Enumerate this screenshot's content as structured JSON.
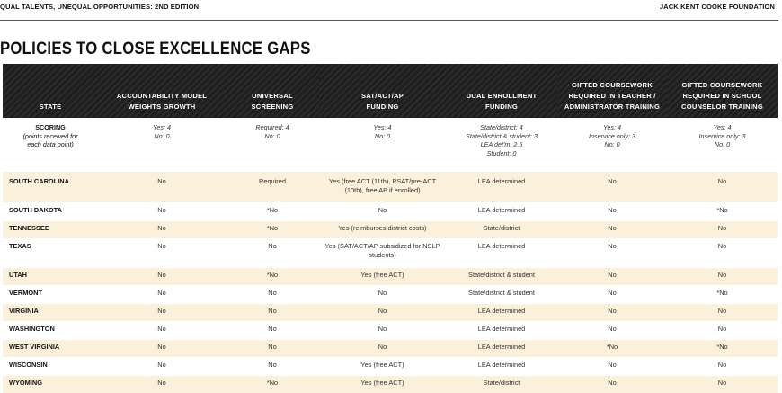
{
  "header": {
    "left": "QUAL TALENTS, UNEQUAL OPPORTUNITIES: 2ND EDITION",
    "right": "JACK KENT COOKE FOUNDATION"
  },
  "title": "POLICIES TO CLOSE EXCELLENCE GAPS",
  "columns": [
    [
      "STATE"
    ],
    [
      "ACCOUNTABILITY MODEL",
      "WEIGHTS GROWTH"
    ],
    [
      "UNIVERSAL",
      "SCREENING"
    ],
    [
      "SAT/ACT/AP",
      "FUNDING"
    ],
    [
      "DUAL ENROLLMENT",
      "FUNDING"
    ],
    [
      "GIFTED COURSEWORK",
      "REQUIRED IN TEACHER /",
      "ADMINISTRATOR TRAINING"
    ],
    [
      "GIFTED COURSEWORK",
      "REQUIRED IN SCHOOL",
      "COUNSELOR TRAINING"
    ]
  ],
  "scoring": {
    "label": "SCORING",
    "sub": [
      "(points received for",
      "each data point)"
    ],
    "cells": [
      [
        "Yes: 4",
        "No: 0"
      ],
      [
        "Required: 4",
        "No: 0"
      ],
      [
        "Yes: 4",
        "No: 0"
      ],
      [
        "State/district: 4",
        "State/district & student: 3",
        "LEA det'm: 2.5",
        "Student: 0"
      ],
      [
        "Yes: 4",
        "Inservice only: 3",
        "No: 0"
      ],
      [
        "Yes: 4",
        "Inservice only: 3",
        "No: 0"
      ]
    ]
  },
  "rows": [
    {
      "state": "SOUTH CAROLINA",
      "cls": "r-sc",
      "cells": [
        [
          "No"
        ],
        [
          "Required"
        ],
        [
          "Yes (free ACT (11th), PSAT/pre-ACT",
          "(10th), free AP if enrolled)"
        ],
        [
          "LEA determined"
        ],
        [
          "No"
        ],
        [
          "No"
        ]
      ]
    },
    {
      "state": "SOUTH DAKOTA",
      "cls": "r-std",
      "cells": [
        [
          "No"
        ],
        [
          "*No"
        ],
        [
          "No"
        ],
        [
          "LEA determined"
        ],
        [
          "No"
        ],
        [
          "*No"
        ]
      ]
    },
    {
      "state": "TENNESSEE",
      "cls": "r-std",
      "cells": [
        [
          "No"
        ],
        [
          "*No"
        ],
        [
          "Yes (reimburses district costs)"
        ],
        [
          "State/district"
        ],
        [
          "No"
        ],
        [
          "No"
        ]
      ]
    },
    {
      "state": "TEXAS",
      "cls": "r-tx",
      "cells": [
        [
          "No"
        ],
        [
          "No"
        ],
        [
          "Yes (SAT/ACT/AP subsidized for NSLP",
          "students)"
        ],
        [
          "LEA determined"
        ],
        [
          "No"
        ],
        [
          "No"
        ]
      ]
    },
    {
      "state": "UTAH",
      "cls": "r-std",
      "cells": [
        [
          "No"
        ],
        [
          "*No"
        ],
        [
          "Yes (free ACT)"
        ],
        [
          "State/district & student"
        ],
        [
          "No"
        ],
        [
          "No"
        ]
      ]
    },
    {
      "state": "VERMONT",
      "cls": "r-std",
      "cells": [
        [
          "No"
        ],
        [
          "No"
        ],
        [
          "No"
        ],
        [
          "State/district & student"
        ],
        [
          "No"
        ],
        [
          "*No"
        ]
      ]
    },
    {
      "state": "VIRGINIA",
      "cls": "r-std",
      "cells": [
        [
          "No"
        ],
        [
          "No"
        ],
        [
          "No"
        ],
        [
          "LEA determined"
        ],
        [
          "No"
        ],
        [
          "No"
        ]
      ]
    },
    {
      "state": "WASHINGTON",
      "cls": "r-std",
      "cells": [
        [
          "No"
        ],
        [
          "No"
        ],
        [
          "No"
        ],
        [
          "LEA determined"
        ],
        [
          "No"
        ],
        [
          "No"
        ]
      ]
    },
    {
      "state": "WEST VIRGINIA",
      "cls": "r-std",
      "cells": [
        [
          "No"
        ],
        [
          "No"
        ],
        [
          "No"
        ],
        [
          "LEA determined"
        ],
        [
          "*No"
        ],
        [
          "*No"
        ]
      ]
    },
    {
      "state": "WISCONSIN",
      "cls": "r-std",
      "cells": [
        [
          "No"
        ],
        [
          "No"
        ],
        [
          "Yes (free ACT)"
        ],
        [
          "LEA determined"
        ],
        [
          "No"
        ],
        [
          "No"
        ]
      ]
    },
    {
      "state": "WYOMING",
      "cls": "r-std",
      "cells": [
        [
          "No"
        ],
        [
          "*No"
        ],
        [
          "Yes (free ACT)"
        ],
        [
          "State/district"
        ],
        [
          "No"
        ],
        [
          "No"
        ]
      ]
    }
  ]
}
